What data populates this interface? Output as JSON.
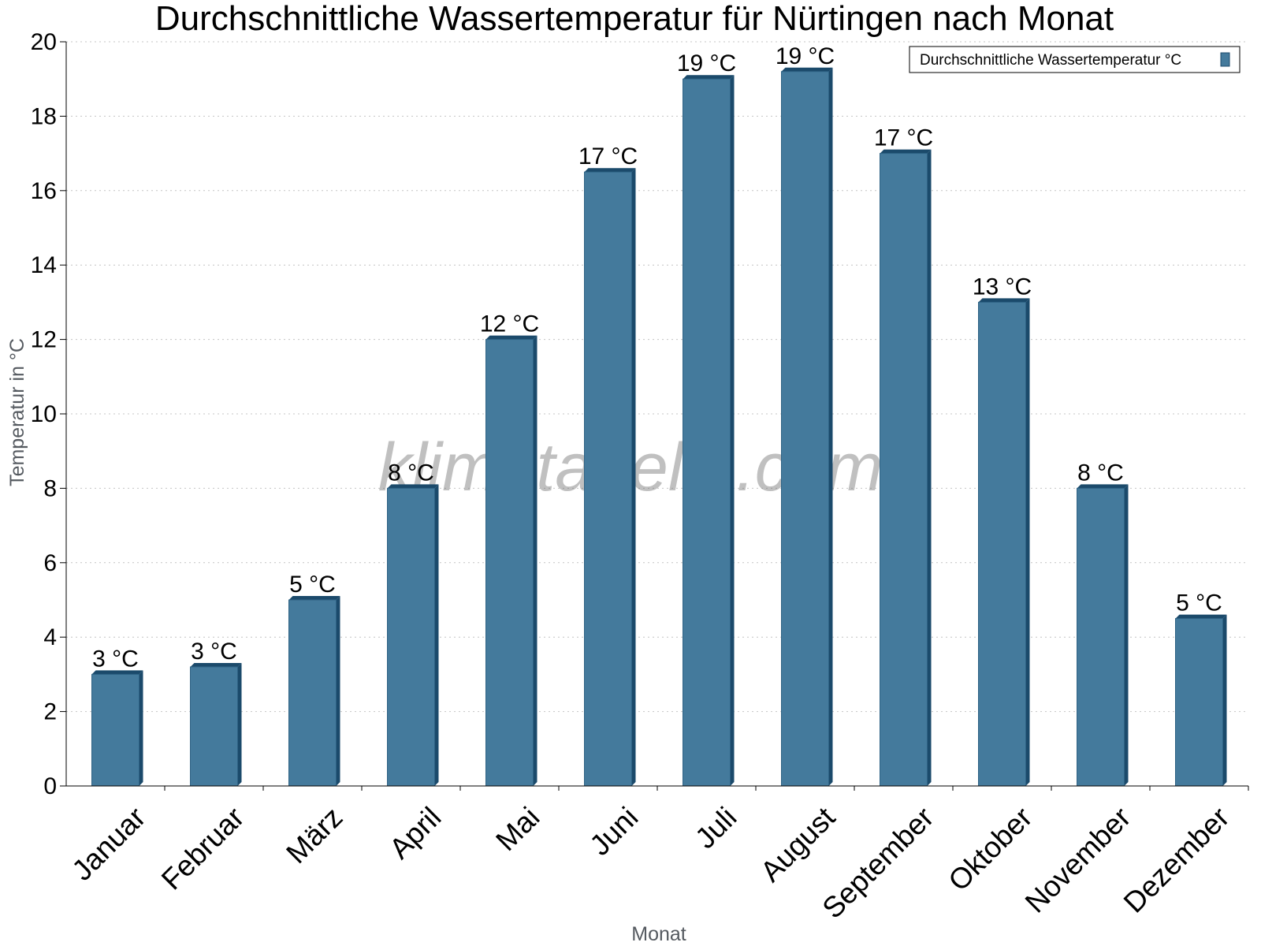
{
  "chart_data": {
    "type": "bar",
    "title": "Durchschnittliche Wassertemperatur für Nürtingen nach Monat",
    "xlabel": "Monat",
    "ylabel": "Temperatur in °C",
    "ylim": [
      0,
      20
    ],
    "yticks": [
      "0",
      "2",
      "4",
      "6",
      "8",
      "10",
      "12",
      "14",
      "16",
      "18",
      "20"
    ],
    "grid": true,
    "legend_position": "top-right",
    "categories": [
      "Januar",
      "Februar",
      "März",
      "April",
      "Mai",
      "Juni",
      "Juli",
      "August",
      "September",
      "Oktober",
      "November",
      "Dezember"
    ],
    "series": [
      {
        "name": "Durchschnittliche Wassertemperatur °C",
        "color": "#447a9c",
        "values": [
          3.0,
          3.2,
          5.0,
          8.0,
          12.0,
          16.5,
          19.0,
          19.2,
          17.0,
          13.0,
          8.0,
          4.5
        ],
        "labels": [
          "3 °C",
          "3 °C",
          "5 °C",
          "8 °C",
          "12 °C",
          "17 °C",
          "19 °C",
          "19 °C",
          "17 °C",
          "13 °C",
          "8 °C",
          "5 °C"
        ]
      }
    ],
    "watermark": "klimatabelle.com"
  }
}
